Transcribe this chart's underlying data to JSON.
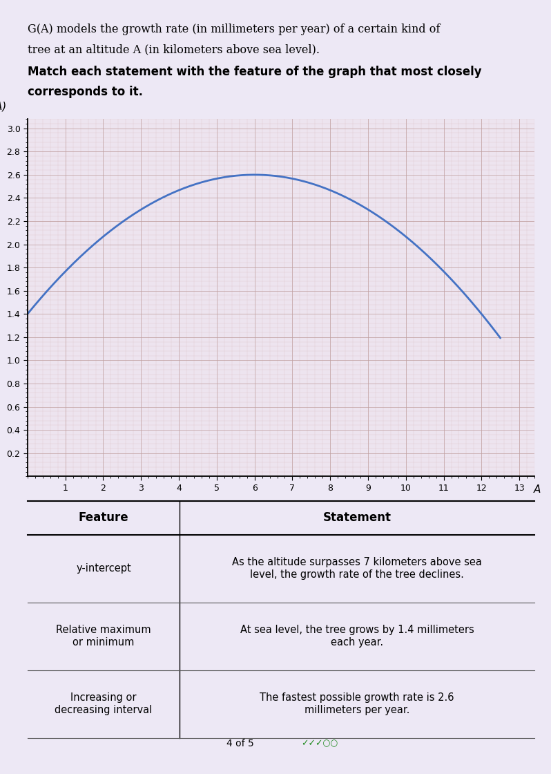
{
  "title_line1": "G(A) models the growth rate (in millimeters per year) of a certain kind of",
  "title_line2": "tree at an altitude A (in kilometers above sea level).",
  "instruction_line1": "Match each statement with the feature of the graph that most closely",
  "instruction_line2": "corresponds to it.",
  "graph_ylabel": "G(A)",
  "graph_xlabel": "A",
  "x_min": 0,
  "x_max": 13,
  "y_min": 0,
  "y_max": 3,
  "x_ticks": [
    1,
    2,
    3,
    4,
    5,
    6,
    7,
    8,
    9,
    10,
    11,
    12,
    13
  ],
  "y_ticks": [
    0.2,
    0.4,
    0.6,
    0.8,
    1.0,
    1.2,
    1.4,
    1.6,
    1.8,
    2.0,
    2.2,
    2.4,
    2.6,
    2.8,
    3.0
  ],
  "curve_color": "#4472C4",
  "curve_linewidth": 2.0,
  "curve_x_start": 0,
  "curve_x_end": 12.5,
  "curve_peak_x": 6,
  "curve_peak_y": 2.6,
  "curve_y_intercept": 1.4,
  "grid_major_color": "#C0A0A0",
  "grid_minor_color": "#D0B0B0",
  "plot_bg_color": "#EDE4EF",
  "page_bg_color": "#EDE8F5",
  "table_feature_col": [
    "y-intercept",
    "Relative maximum\nor minimum",
    "Increasing or\ndecreasing interval"
  ],
  "table_statement_col": [
    "As the altitude surpasses 7 kilometers above sea\nlevel, the growth rate of the tree declines.",
    "At sea level, the tree grows by 1.4 millimeters\neach year.",
    "The fastest possible growth rate is 2.6\nmillimeters per year."
  ],
  "footer_text": "4 of 5",
  "divider_x": 0.3
}
